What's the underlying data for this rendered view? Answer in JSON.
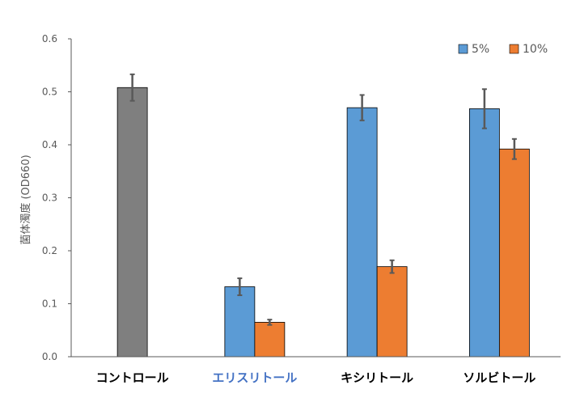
{
  "chart_data": {
    "type": "bar",
    "title": "",
    "xlabel": "",
    "ylabel": "菌体濁度 (OD660)",
    "ylim": [
      0,
      0.6
    ],
    "yticks": [
      "0.0",
      "0.1",
      "0.2",
      "0.3",
      "0.4",
      "0.5",
      "0.6"
    ],
    "grid": false,
    "legend_position": "top-right",
    "categories": [
      "コントロール",
      "エリスリトール",
      "キシリトール",
      "ソルビトール"
    ],
    "highlight_category": "エリスリトール",
    "control": {
      "category": "コントロール",
      "value": 0.508,
      "error": 0.025,
      "color": "#7F7F7F"
    },
    "series": [
      {
        "name": "5%",
        "color": "#5B9BD5",
        "values": [
          null,
          0.132,
          0.47,
          0.468
        ],
        "errors": [
          null,
          0.016,
          0.024,
          0.037
        ]
      },
      {
        "name": "10%",
        "color": "#ED7D31",
        "values": [
          null,
          0.065,
          0.17,
          0.392
        ],
        "errors": [
          null,
          0.005,
          0.012,
          0.019
        ]
      }
    ],
    "error_bar_color": "#595959"
  }
}
